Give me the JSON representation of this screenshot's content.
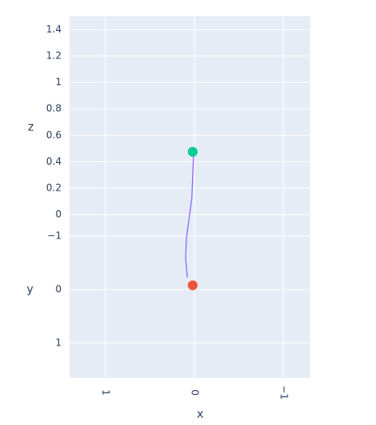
{
  "chart_data": {
    "type": "scatter3d",
    "xaxis_title": "x",
    "yaxis_title": "y",
    "zaxis_title": "z",
    "xlim": [
      -1.3,
      1.4
    ],
    "ylim": [
      -1.4,
      1.65
    ],
    "zlim": [
      0,
      1.5
    ],
    "xticks": [
      {
        "value": 1,
        "label": "1"
      },
      0,
      {
        "value": -1,
        "label": "−1"
      }
    ],
    "yticks": [
      {
        "value": -1,
        "label": "−1"
      },
      0,
      1
    ],
    "zticks": [
      0,
      0.2,
      0.4,
      0.6,
      0.8,
      1,
      1.2,
      1.4
    ],
    "background": "#e5ecf6",
    "grid": true,
    "series": [
      {
        "mode": "lines",
        "color": "#8b5cf6",
        "x": [
          0.08,
          0.1,
          0.09,
          0.06,
          0.03,
          0.02,
          0.01
        ],
        "y": [
          -0.1,
          -0.1,
          -0.1,
          -0.1,
          -0.1,
          -0.1,
          -0.1
        ],
        "z": [
          0.05,
          0.2,
          0.35,
          0.5,
          0.65,
          0.82,
          0.97
        ]
      },
      {
        "mode": "markers",
        "color": "#ef553b",
        "x": [
          0.02
        ],
        "y": [
          -0.08
        ],
        "z": [
          0
        ]
      },
      {
        "mode": "markers",
        "color": "#00cc96",
        "x": [
          0.02
        ],
        "y": [
          -0.08
        ],
        "z": [
          1.01
        ]
      }
    ]
  }
}
